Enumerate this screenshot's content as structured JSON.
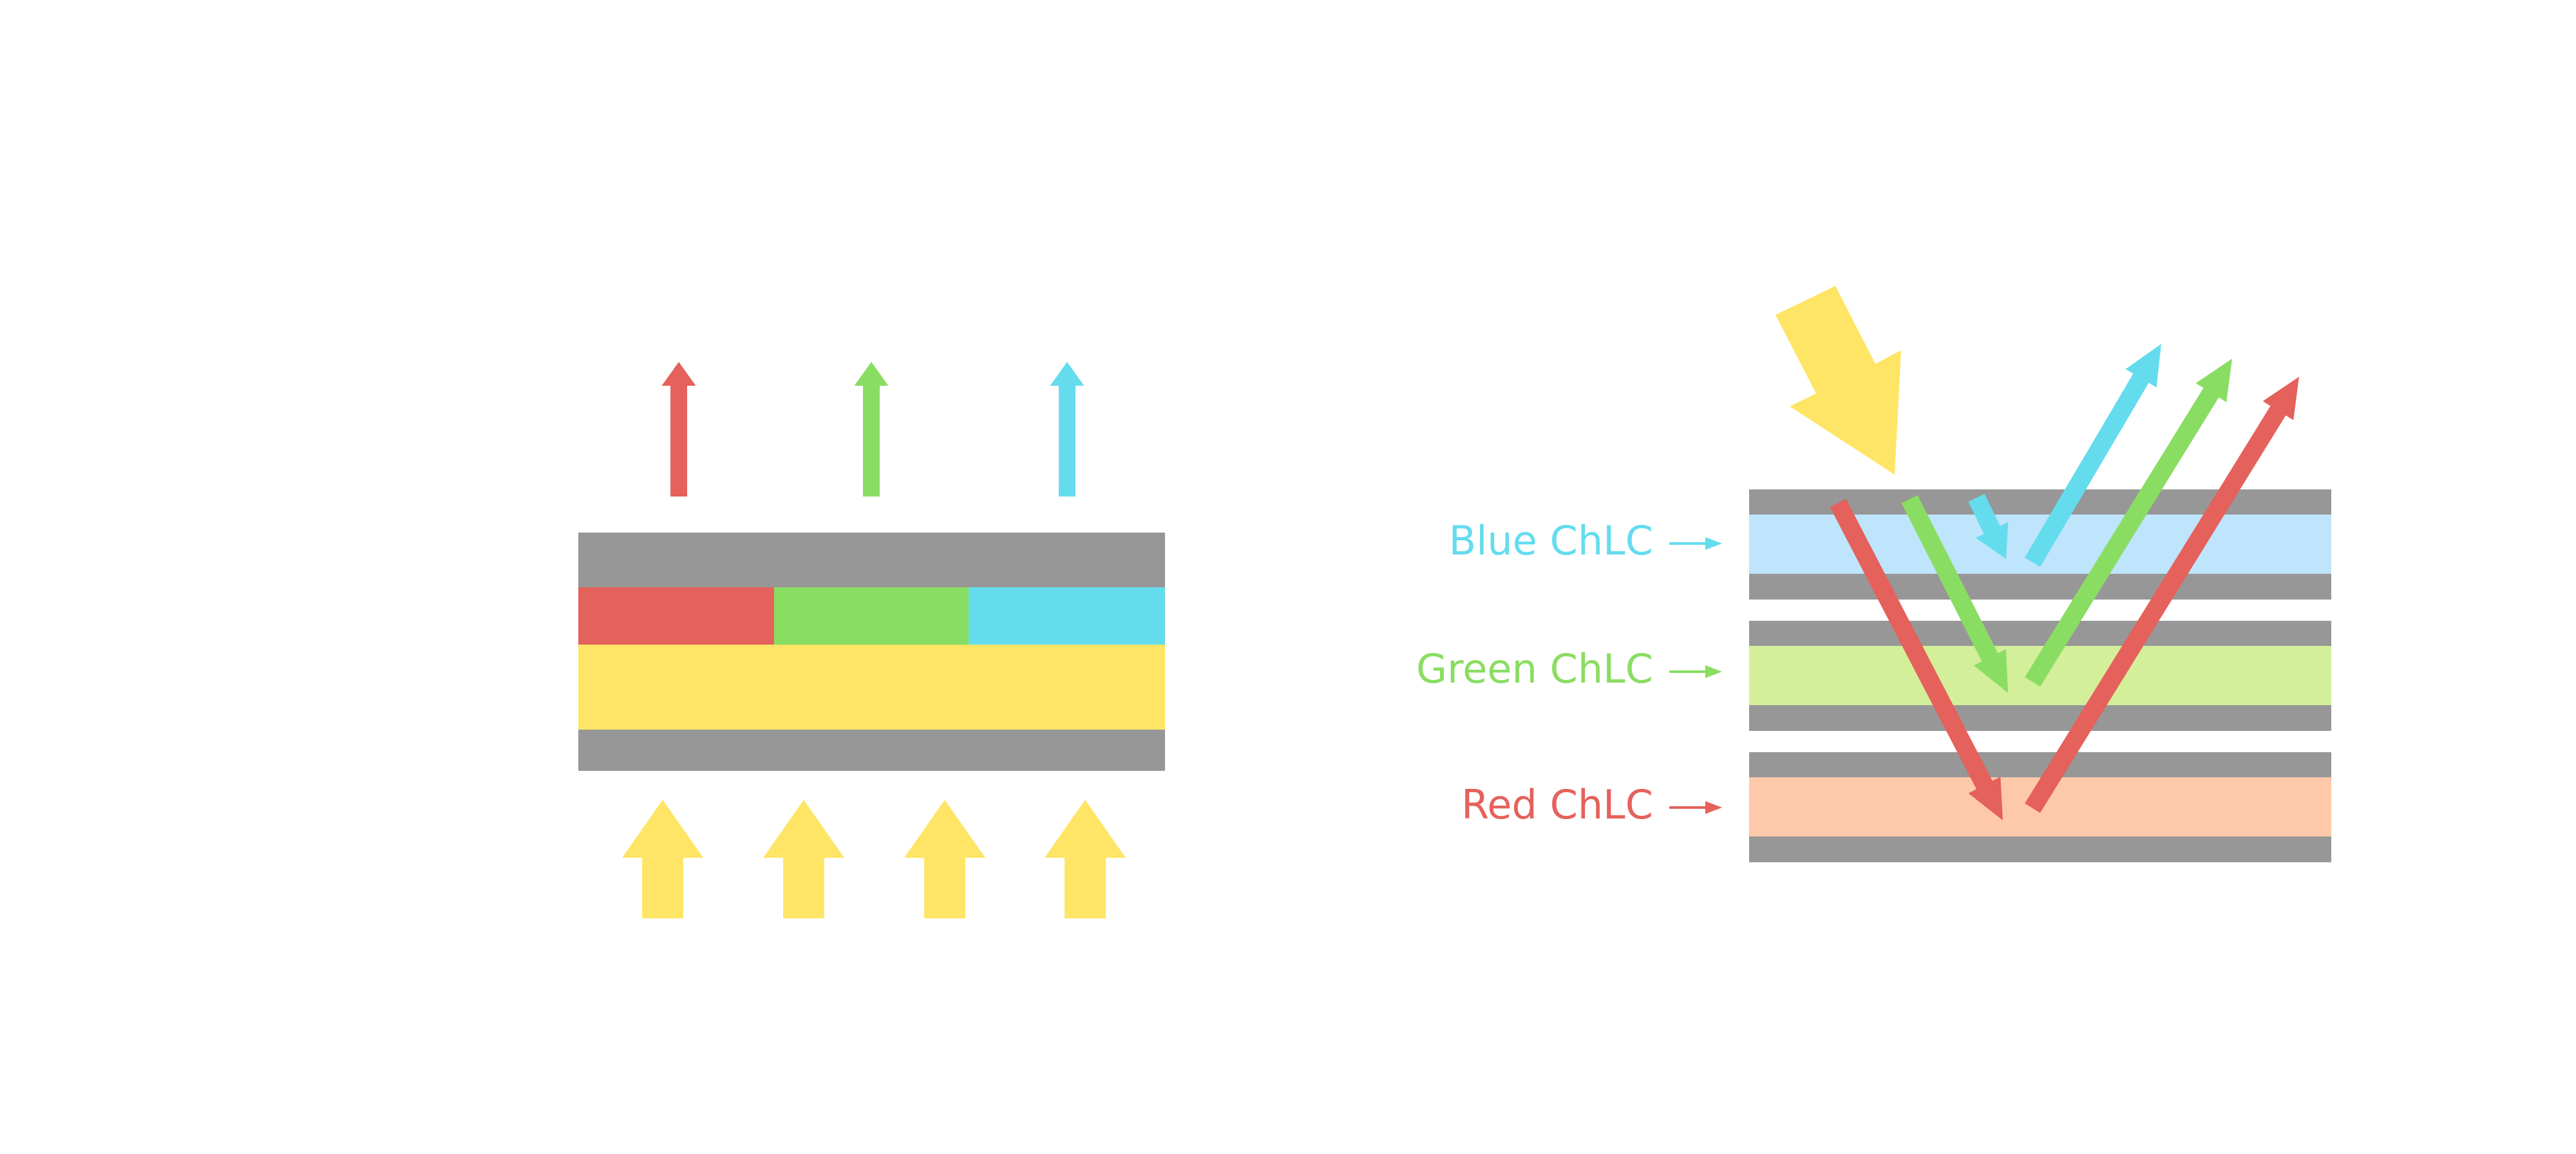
{
  "colors": {
    "red": "#E5615B",
    "green": "#8ADD63",
    "blue": "#64DCEE",
    "yellow": "#FEE565",
    "gray": "#979797",
    "blue_layer": "#BEE5FC",
    "green_layer": "#D3EF9A",
    "red_layer": "#FDC9A9"
  },
  "right_diagram": {
    "labels": {
      "blue": "Blue ChLC",
      "green": "Green ChLC",
      "red": "Red ChLC"
    }
  }
}
